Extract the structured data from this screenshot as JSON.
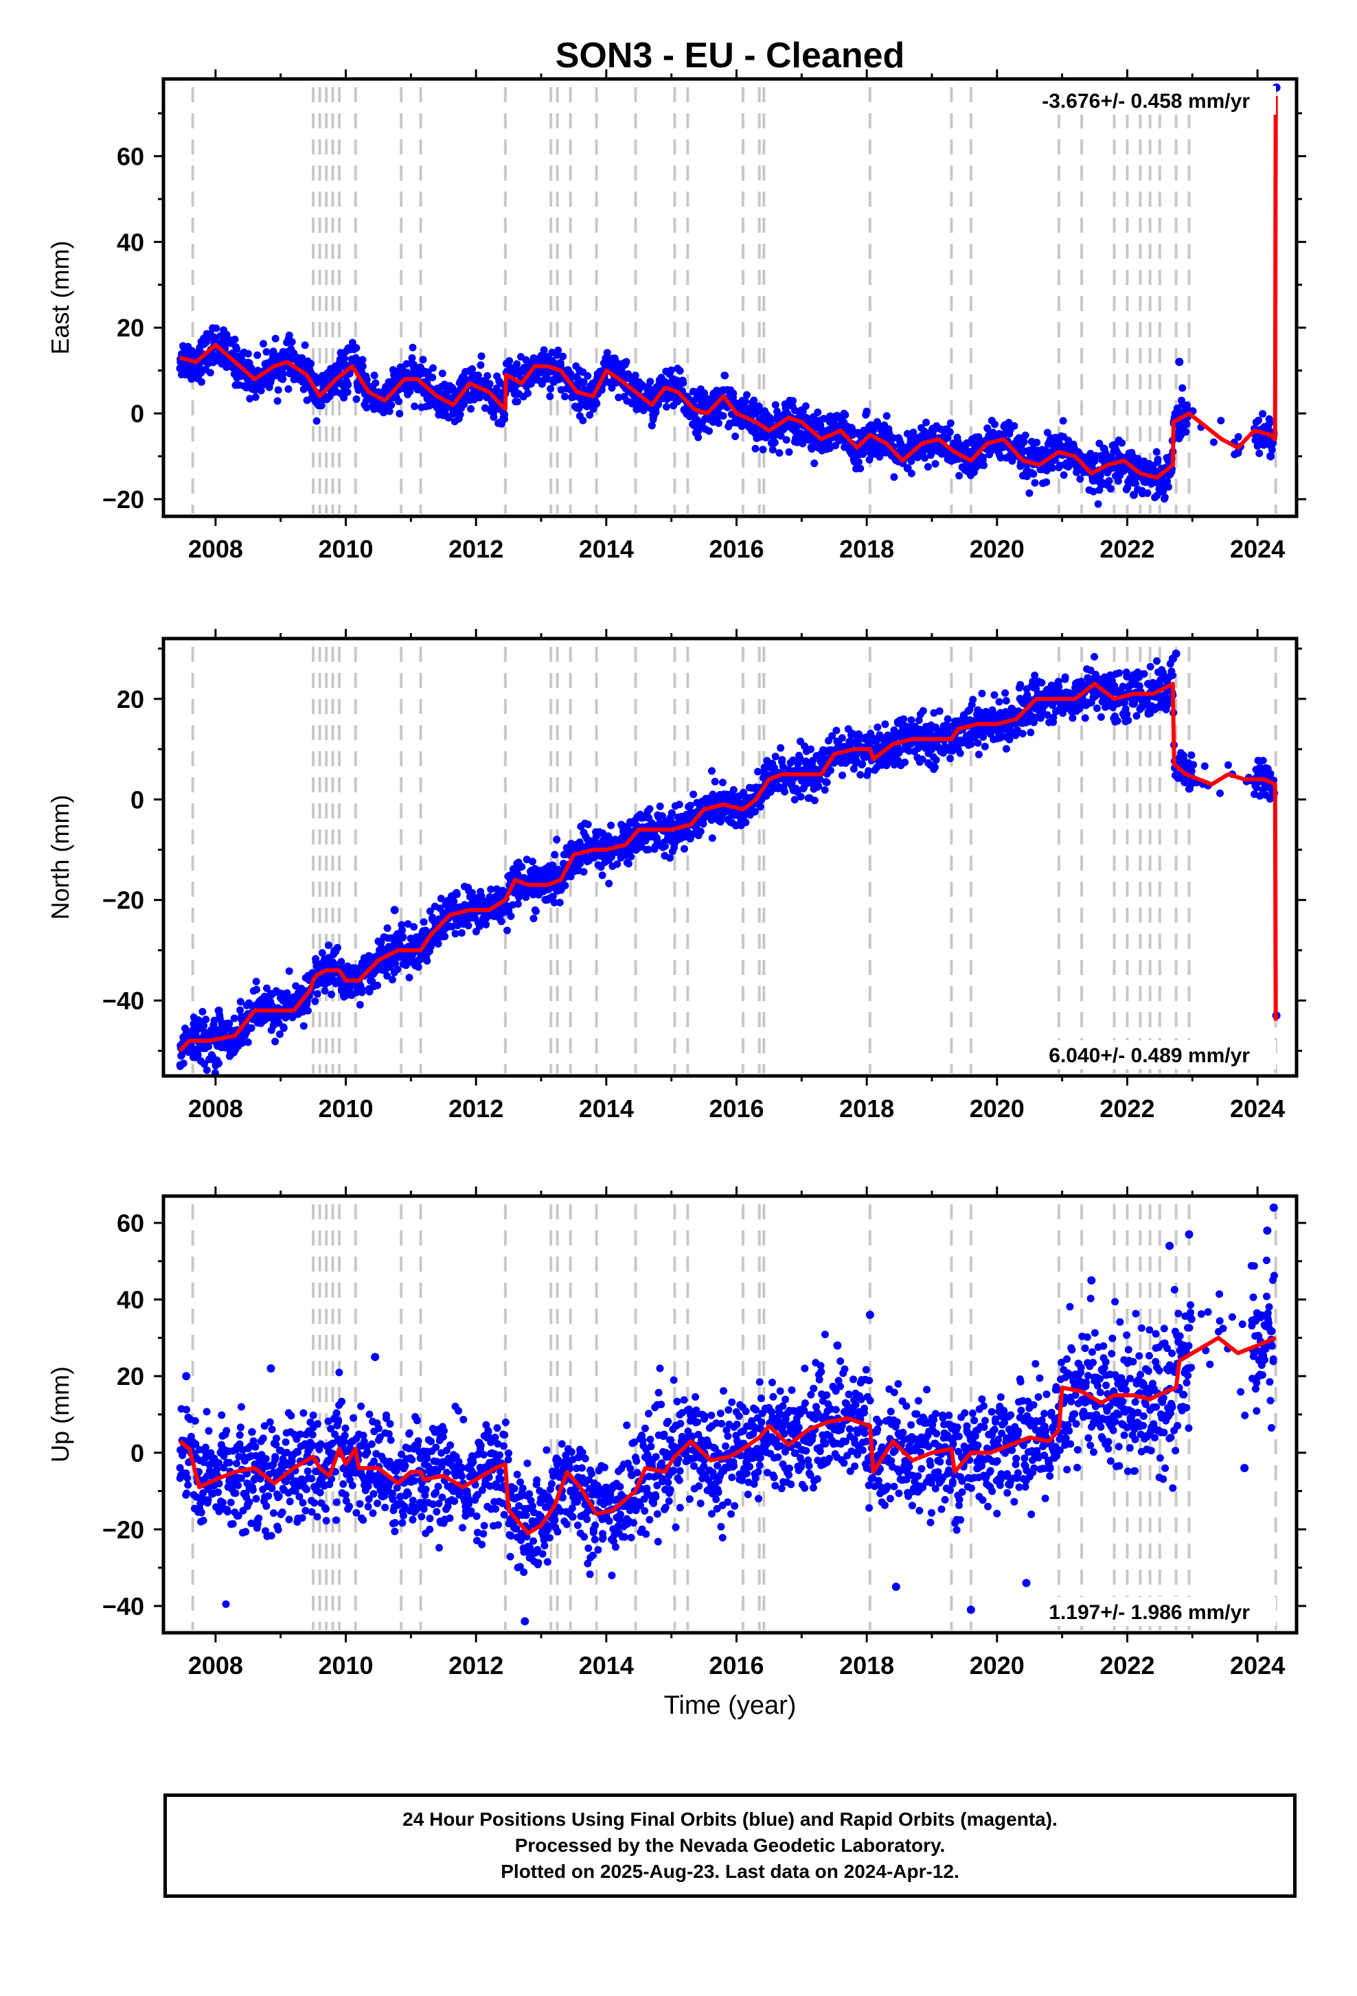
{
  "title": "SON3  - EU - Cleaned",
  "caption": [
    "24 Hour Positions Using Final Orbits (blue) and Rapid Orbits (magenta).",
    "Processed by the Nevada Geodetic Laboratory.",
    "Plotted on 2025-Aug-23. Last data on 2024-Apr-12."
  ],
  "colors": {
    "points": "#0000ff",
    "model": "#ff0000",
    "steps": "#c8c8c8",
    "frame": "#000000"
  },
  "chart_data": [
    {
      "type": "scatter",
      "component": "east",
      "ylabel": "East (mm)",
      "xlabel": "",
      "xlim": [
        2007.2,
        2024.6
      ],
      "ylim": [
        -24,
        78
      ],
      "xticks": [
        2008,
        2010,
        2012,
        2014,
        2016,
        2018,
        2020,
        2022,
        2024
      ],
      "yticks": [
        -20,
        0,
        20,
        40,
        60
      ],
      "velocity_label": "-3.676+/- 0.458 mm/yr",
      "velocity_position": "top-right",
      "step_epochs": [
        2007.65,
        2009.5,
        2009.6,
        2009.7,
        2009.8,
        2009.9,
        2010.15,
        2010.85,
        2011.15,
        2012.45,
        2013.15,
        2013.25,
        2013.45,
        2013.85,
        2014.45,
        2015.05,
        2015.25,
        2016.1,
        2016.35,
        2016.42,
        2018.05,
        2019.3,
        2019.6,
        2020.95,
        2021.3,
        2021.8,
        2022.0,
        2022.2,
        2022.35,
        2022.5,
        2022.75,
        2022.95,
        2024.28
      ],
      "model_line": {
        "x": [
          2007.45,
          2007.7,
          2008.0,
          2008.3,
          2008.6,
          2008.9,
          2009.1,
          2009.4,
          2009.6,
          2009.85,
          2010.1,
          2010.35,
          2010.6,
          2010.9,
          2011.1,
          2011.4,
          2011.65,
          2011.9,
          2012.2,
          2012.45,
          2012.46,
          2012.7,
          2012.9,
          2013.1,
          2013.3,
          2013.55,
          2013.8,
          2014.0,
          2014.2,
          2014.45,
          2014.7,
          2014.9,
          2015.1,
          2015.35,
          2015.55,
          2015.8,
          2016.0,
          2016.3,
          2016.5,
          2016.8,
          2017.0,
          2017.3,
          2017.6,
          2017.85,
          2018.05,
          2018.3,
          2018.55,
          2018.85,
          2019.1,
          2019.35,
          2019.6,
          2019.85,
          2020.1,
          2020.4,
          2020.65,
          2020.95,
          2021.2,
          2021.45,
          2021.7,
          2021.95,
          2022.2,
          2022.45,
          2022.7,
          2022.71,
          2022.95,
          2023.2,
          2023.45,
          2023.7,
          2023.95,
          2024.2,
          2024.27,
          2024.28
        ],
        "y": [
          13.0,
          12.0,
          16.0,
          12.0,
          8.0,
          11.0,
          12.0,
          9.0,
          4.0,
          8.0,
          11.0,
          5.0,
          3.0,
          8.0,
          8.0,
          4.0,
          2.0,
          7.0,
          5.0,
          1.0,
          9.0,
          7.0,
          11.0,
          11.0,
          10.0,
          5.0,
          4.0,
          10.0,
          8.0,
          5.0,
          2.0,
          6.0,
          5.0,
          1.0,
          0.0,
          4.0,
          0.0,
          -2.0,
          -4.0,
          -1.0,
          -2.0,
          -6.0,
          -4.0,
          -8.0,
          -5.0,
          -7.0,
          -11.0,
          -7.0,
          -6.0,
          -9.0,
          -11.0,
          -7.0,
          -6.0,
          -11.0,
          -12.0,
          -9.0,
          -10.0,
          -14.0,
          -12.0,
          -11.0,
          -14.0,
          -15.0,
          -12.0,
          -2.0,
          0.0,
          -3.0,
          -6.0,
          -8.0,
          -4.0,
          -5.0,
          -6.0,
          74.0
        ]
      },
      "residual_offset": [
        -14,
        0
      ],
      "scatter_noise": 2.4,
      "scatter_gaps": [
        [
          2022.95,
          2023.95
        ]
      ],
      "outliers": [
        [
          2022.8,
          12.0
        ],
        [
          2024.29,
          76.0
        ],
        [
          2024.2,
          -10.0
        ],
        [
          2022.1,
          -19.0
        ]
      ]
    },
    {
      "type": "scatter",
      "component": "north",
      "ylabel": "North (mm)",
      "xlabel": "",
      "xlim": [
        2007.2,
        2024.6
      ],
      "ylim": [
        -55,
        32
      ],
      "xticks": [
        2008,
        2010,
        2012,
        2014,
        2016,
        2018,
        2020,
        2022,
        2024
      ],
      "yticks": [
        -40,
        -20,
        0,
        20
      ],
      "velocity_label": "6.040+/- 0.489 mm/yr",
      "velocity_position": "bottom-right",
      "step_epochs": [
        2007.65,
        2009.5,
        2009.6,
        2009.7,
        2009.8,
        2009.9,
        2010.15,
        2010.85,
        2011.15,
        2012.45,
        2013.15,
        2013.25,
        2013.45,
        2013.85,
        2014.45,
        2015.05,
        2015.25,
        2016.1,
        2016.35,
        2016.42,
        2018.05,
        2019.3,
        2019.6,
        2020.95,
        2021.3,
        2021.8,
        2022.0,
        2022.2,
        2022.35,
        2022.5,
        2022.75,
        2022.95,
        2024.28
      ],
      "model_line": {
        "x": [
          2007.45,
          2007.6,
          2007.9,
          2008.3,
          2008.6,
          2008.9,
          2009.2,
          2009.45,
          2009.5,
          2009.55,
          2009.7,
          2009.9,
          2010.0,
          2010.2,
          2010.5,
          2010.8,
          2011.0,
          2011.15,
          2011.3,
          2011.6,
          2011.9,
          2012.2,
          2012.45,
          2012.6,
          2012.8,
          2013.1,
          2013.3,
          2013.5,
          2013.8,
          2014.0,
          2014.3,
          2014.5,
          2014.8,
          2015.0,
          2015.3,
          2015.5,
          2015.8,
          2016.1,
          2016.3,
          2016.5,
          2016.7,
          2017.0,
          2017.3,
          2017.5,
          2017.8,
          2018.05,
          2018.1,
          2018.4,
          2018.7,
          2019.0,
          2019.3,
          2019.4,
          2019.7,
          2020.0,
          2020.3,
          2020.6,
          2020.9,
          2021.2,
          2021.5,
          2021.8,
          2022.1,
          2022.4,
          2022.7,
          2022.72,
          2022.9,
          2023.1,
          2023.3,
          2023.55,
          2023.8,
          2024.1,
          2024.27,
          2024.28
        ],
        "y": [
          -50.0,
          -48.0,
          -48.0,
          -47.0,
          -42.0,
          -42.0,
          -42.0,
          -38.0,
          -36.0,
          -35.0,
          -34.0,
          -34.0,
          -36.0,
          -36.0,
          -32.0,
          -30.0,
          -30.0,
          -30.0,
          -27.0,
          -23.0,
          -22.0,
          -22.0,
          -20.0,
          -16.0,
          -17.0,
          -17.0,
          -16.0,
          -11.0,
          -10.0,
          -10.0,
          -9.0,
          -6.0,
          -6.0,
          -6.0,
          -5.0,
          -2.0,
          -1.0,
          -2.0,
          0.0,
          4.0,
          5.0,
          5.0,
          5.0,
          9.0,
          10.0,
          10.0,
          8.0,
          11.0,
          12.0,
          12.0,
          12.0,
          14.0,
          15.0,
          15.0,
          16.0,
          20.0,
          20.0,
          20.0,
          23.0,
          20.0,
          21.0,
          21.0,
          23.0,
          7.0,
          5.0,
          4.0,
          3.0,
          5.0,
          4.0,
          4.0,
          3.0,
          -44.0
        ]
      },
      "residual_offset": [
        -14,
        0
      ],
      "scatter_noise": 2.2,
      "scatter_gaps": [
        [
          2023.0,
          2023.95
        ]
      ],
      "outliers": [
        [
          2024.29,
          -43.0
        ],
        [
          2008.05,
          -42.0
        ],
        [
          2010.75,
          -22.0
        ],
        [
          2022.75,
          29.0
        ],
        [
          2022.7,
          28.0
        ]
      ]
    },
    {
      "type": "scatter",
      "component": "up",
      "ylabel": "Up (mm)",
      "xlabel": "Time (year)",
      "xlim": [
        2007.2,
        2024.6
      ],
      "ylim": [
        -47,
        67
      ],
      "xticks": [
        2008,
        2010,
        2012,
        2014,
        2016,
        2018,
        2020,
        2022,
        2024
      ],
      "yticks": [
        -40,
        -20,
        0,
        20,
        40,
        60
      ],
      "velocity_label": "1.197+/- 1.986 mm/yr",
      "velocity_position": "bottom-right",
      "step_epochs": [
        2007.65,
        2009.5,
        2009.6,
        2009.7,
        2009.8,
        2009.9,
        2010.15,
        2010.85,
        2011.15,
        2012.45,
        2013.15,
        2013.25,
        2013.45,
        2013.85,
        2014.45,
        2015.05,
        2015.25,
        2016.1,
        2016.35,
        2016.42,
        2018.05,
        2019.3,
        2019.6,
        2020.95,
        2021.3,
        2021.8,
        2022.0,
        2022.2,
        2022.35,
        2022.5,
        2022.75,
        2022.95,
        2024.28
      ],
      "model_line": {
        "x": [
          2007.45,
          2007.6,
          2007.75,
          2008.0,
          2008.3,
          2008.6,
          2008.9,
          2009.2,
          2009.5,
          2009.6,
          2009.75,
          2009.9,
          2010.0,
          2010.15,
          2010.2,
          2010.5,
          2010.8,
          2011.0,
          2011.15,
          2011.2,
          2011.5,
          2011.8,
          2012.0,
          2012.3,
          2012.45,
          2012.5,
          2012.8,
          2013.0,
          2013.2,
          2013.4,
          2013.6,
          2013.85,
          2014.1,
          2014.45,
          2014.6,
          2014.9,
          2015.05,
          2015.3,
          2015.6,
          2015.9,
          2016.1,
          2016.35,
          2016.5,
          2016.8,
          2017.1,
          2017.4,
          2017.7,
          2018.05,
          2018.1,
          2018.4,
          2018.7,
          2019.0,
          2019.3,
          2019.35,
          2019.6,
          2019.9,
          2020.2,
          2020.5,
          2020.8,
          2020.95,
          2021.0,
          2021.3,
          2021.6,
          2021.8,
          2022.1,
          2022.35,
          2022.6,
          2022.75,
          2022.8,
          2023.1,
          2023.4,
          2023.7,
          2024.0,
          2024.28
        ],
        "y": [
          3.0,
          1.0,
          -9.0,
          -7.0,
          -5.0,
          -4.0,
          -8.0,
          -4.0,
          -1.0,
          -4.0,
          -6.0,
          1.0,
          -3.0,
          1.0,
          -4.0,
          -4.0,
          -8.0,
          -5.0,
          -5.0,
          -7.0,
          -6.0,
          -9.0,
          -7.0,
          -4.0,
          -3.0,
          -15.0,
          -21.0,
          -19.0,
          -14.0,
          -5.0,
          -9.0,
          -16.0,
          -15.0,
          -10.0,
          -4.0,
          -5.0,
          -1.0,
          3.0,
          -2.0,
          -1.0,
          1.0,
          4.0,
          7.0,
          2.0,
          6.0,
          8.0,
          9.0,
          7.0,
          -5.0,
          3.0,
          -2.0,
          0.0,
          1.0,
          -5.0,
          0.0,
          0.0,
          2.0,
          4.0,
          3.0,
          6.0,
          17.0,
          16.0,
          13.0,
          15.0,
          15.0,
          14.0,
          16.0,
          17.0,
          24.0,
          27.0,
          30.0,
          26.0,
          28.0,
          30.0
        ]
      },
      "residual_offset": [
        -14,
        0
      ],
      "scatter_noise": 7.0,
      "scatter_gaps": [
        [
          2023.0,
          2023.9
        ]
      ],
      "outliers": [
        [
          2007.55,
          20.0
        ],
        [
          2008.85,
          22.0
        ],
        [
          2010.45,
          25.0
        ],
        [
          2012.75,
          -44.0
        ],
        [
          2017.55,
          28.0
        ],
        [
          2018.05,
          36.0
        ],
        [
          2018.45,
          -35.0
        ],
        [
          2019.6,
          -41.0
        ],
        [
          2020.45,
          -34.0
        ],
        [
          2021.45,
          45.0
        ],
        [
          2022.65,
          54.0
        ],
        [
          2022.95,
          57.0
        ],
        [
          2024.25,
          64.0
        ],
        [
          2024.15,
          58.0
        ],
        [
          2023.8,
          -4.0
        ]
      ]
    }
  ]
}
